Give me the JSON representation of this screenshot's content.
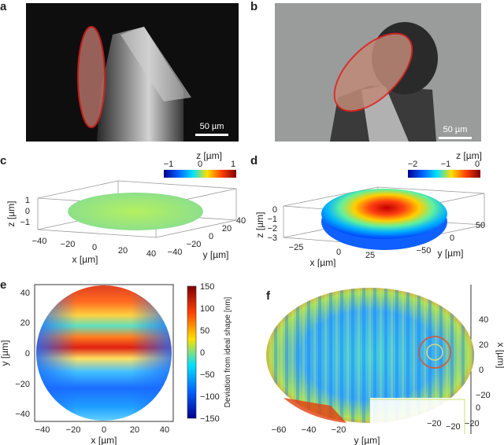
{
  "panels": {
    "a": {
      "letter": "a",
      "scalebar": "50 µm"
    },
    "b": {
      "letter": "b",
      "scalebar": "50 µm"
    },
    "c": {
      "letter": "c",
      "zlabel_unit": "z [µm]",
      "colorbar_ticks": [
        "−1",
        "0",
        "1"
      ],
      "x_label": "x [µm]",
      "y_label": "y [µm]",
      "z_label": "z [µm]",
      "x_ticks": [
        "−40",
        "−20",
        "0",
        "20",
        "40"
      ],
      "y_ticks": [
        "−40",
        "−20",
        "0",
        "20",
        "40"
      ],
      "z_ticks": [
        "1",
        "0",
        "−1"
      ]
    },
    "d": {
      "letter": "d",
      "zlabel_unit": "z [µm]",
      "colorbar_ticks": [
        "−2",
        "−1",
        "0"
      ],
      "x_label": "x [µm]",
      "y_label": "y [µm]",
      "z_label": "z [µm]",
      "x_ticks": [
        "−25",
        "0",
        "25"
      ],
      "y_ticks": [
        "−50",
        "0",
        "50"
      ],
      "z_ticks": [
        "0",
        "−1",
        "−2",
        "−3"
      ]
    },
    "e": {
      "letter": "e",
      "x_label": "x [µm]",
      "y_label": "y [µm]",
      "x_ticks": [
        "−40",
        "−20",
        "0",
        "20",
        "40"
      ],
      "y_ticks": [
        "40",
        "20",
        "0",
        "−20",
        "−40"
      ],
      "colorbar_label": "Deviation from ideal shape [nm]",
      "colorbar_ticks": [
        "150",
        "100",
        "50",
        "0",
        "−50",
        "−100",
        "−150"
      ]
    },
    "f": {
      "letter": "f",
      "x_label": "y [µm]",
      "y_label": "x [µm]",
      "x_ticks": [
        "−60",
        "−40",
        "−20"
      ],
      "y_ticks": [
        "40",
        "20",
        "0",
        "−20"
      ],
      "inset_ticks": [
        "0",
        "−20",
        "−20",
        "−20"
      ]
    }
  },
  "colors": {
    "outline": "#e0201c",
    "dark_bg": "#111111",
    "gray_bg": "#9a9c9c"
  }
}
